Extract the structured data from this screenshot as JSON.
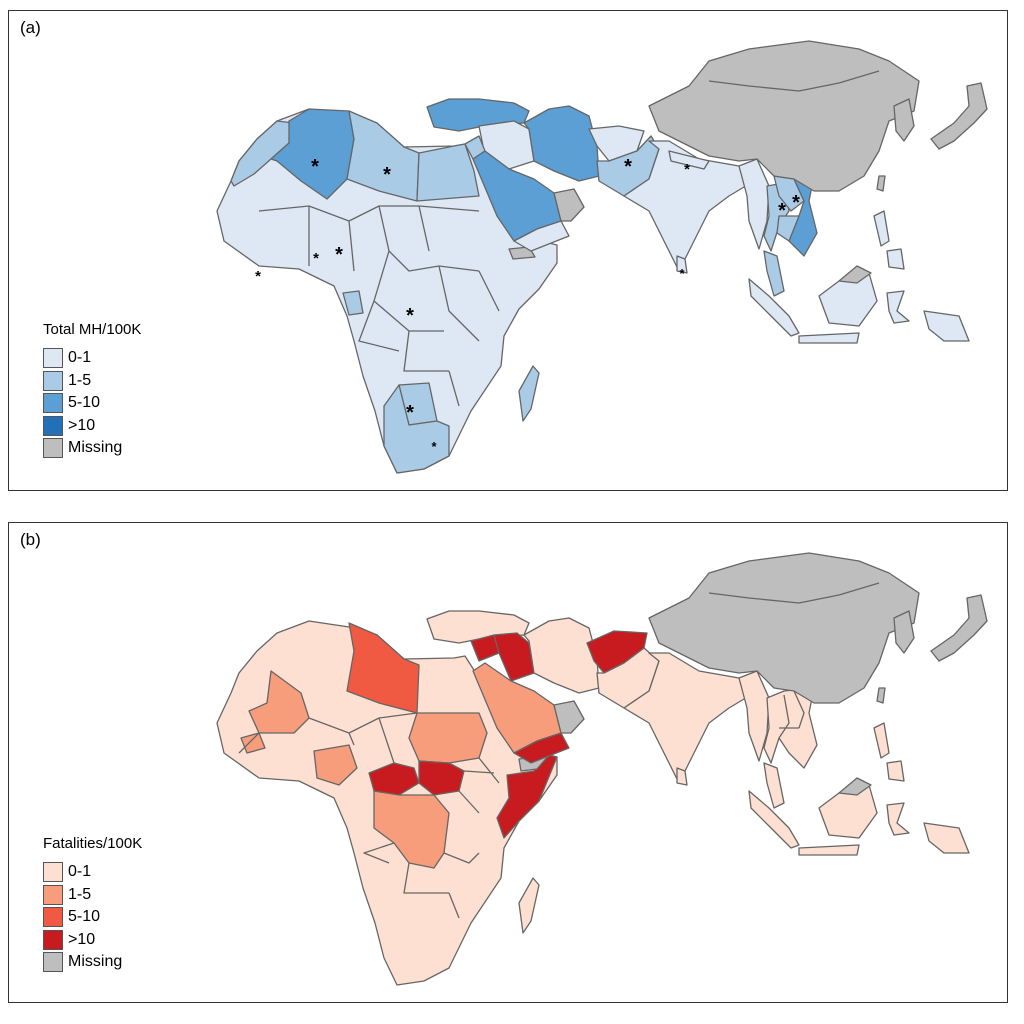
{
  "colors": {
    "blue": [
      "#dde8f4",
      "#a9cbe6",
      "#5b9fd4",
      "#2170b8"
    ],
    "red": [
      "#fde0d2",
      "#f89d7c",
      "#f05a43",
      "#c81b20"
    ],
    "missing": "#bebebe",
    "border": "#666666"
  },
  "panels": [
    {
      "label": "(a)",
      "legend": {
        "title": "Total MH/100K",
        "items": [
          {
            "label": "0-1",
            "color": "#dde8f4"
          },
          {
            "label": "1-5",
            "color": "#a9cbe6"
          },
          {
            "label": "5-10",
            "color": "#5b9fd4"
          },
          {
            "label": ">10",
            "color": "#2170b8"
          },
          {
            "label": "Missing",
            "color": "#bebebe"
          }
        ]
      }
    },
    {
      "label": "(b)",
      "legend": {
        "title": "Fatalities/100K",
        "items": [
          {
            "label": "0-1",
            "color": "#fde0d2"
          },
          {
            "label": "1-5",
            "color": "#f89d7c"
          },
          {
            "label": "5-10",
            "color": "#f05a43"
          },
          {
            "label": ">10",
            "color": "#c81b20"
          },
          {
            "label": "Missing",
            "color": "#bebebe"
          }
        ]
      }
    }
  ],
  "map_regions": {
    "panel_a": {
      "africa": "0-1",
      "algeria": "5-10",
      "libya": "1-5",
      "egypt": "1-5",
      "morocco": "1-5",
      "western_sahara": "1-5",
      "equatorial_guinea": "1-5",
      "botswana": "1-5",
      "south_africa": "1-5",
      "somaliland": "Missing",
      "saudi_arabia": "5-10",
      "iran": "5-10",
      "turkey": "5-10",
      "iraq": "0-1",
      "jordan": "1-5",
      "gulf_states": "0-1",
      "oman": "Missing",
      "afghanistan": "0-1",
      "pakistan": "1-5",
      "india": "0-1",
      "myanmar": "0-1",
      "laos": "1-5",
      "cambodia": "1-5",
      "vietnam": "5-10",
      "thailand": "1-5",
      "malaysia": "1-5",
      "indonesia": "0-1",
      "philippines": "0-1",
      "borneo_north": "Missing",
      "china_mongolia": "Missing",
      "korea": "Missing",
      "japan": "Missing",
      "sri_lanka": "0-1",
      "madagascar": "1-5"
    },
    "panel_b": {
      "africa": "0-1",
      "libya": "5-10",
      "mali": "1-5",
      "nigeria": "1-5",
      "sudan": "1-5",
      "drc": "1-5",
      "guinea": "1-5",
      "car": ">10",
      "south_sudan": ">10",
      "somalia": ">10",
      "somaliland": "Missing",
      "saudi_arabia": "1-5",
      "yemen": ">10",
      "syria": ">10",
      "iraq": ">10",
      "afghanistan": ">10",
      "oman": "Missing",
      "india": "0-1",
      "china_mongolia": "Missing",
      "korea": "Missing",
      "japan": "Missing",
      "borneo_north": "Missing"
    }
  }
}
